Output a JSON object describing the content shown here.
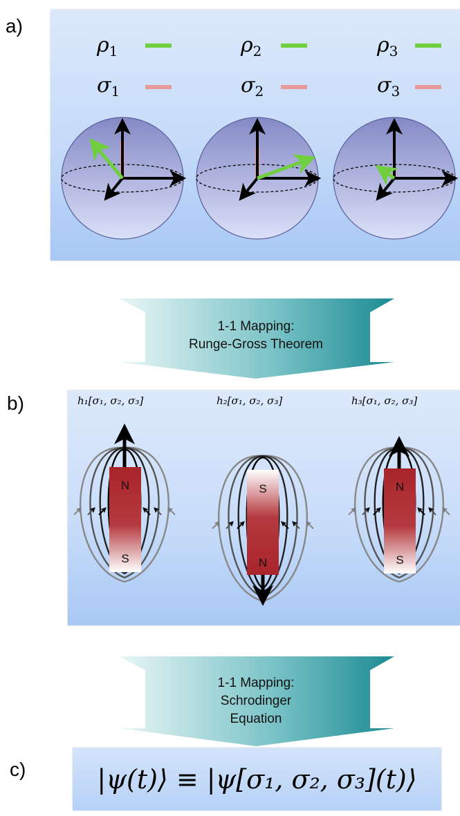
{
  "panels": {
    "a": {
      "label": "a)",
      "legend": [
        {
          "rho": "ρ",
          "rho_sub": "1",
          "sigma": "σ",
          "sigma_sub": "1"
        },
        {
          "rho": "ρ",
          "rho_sub": "2",
          "sigma": "σ",
          "sigma_sub": "2"
        },
        {
          "rho": "ρ",
          "rho_sub": "3",
          "sigma": "σ",
          "sigma_sub": "3"
        }
      ]
    },
    "b": {
      "label": "b)",
      "hamiltonians": [
        "h₁[σ₁, σ₂, σ₃]",
        "h₂[σ₁, σ₂, σ₃]",
        "h₃[σ₁, σ₂, σ₃]"
      ],
      "magnets": [
        {
          "top": "N",
          "bottom": "S"
        },
        {
          "top": "S",
          "bottom": "N"
        },
        {
          "top": "N",
          "bottom": "S"
        }
      ]
    },
    "c": {
      "label": "c)",
      "equation": "|ψ(t)⟩ ≡ |ψ[σ₁, σ₂, σ₃](t)⟩"
    }
  },
  "mappings": [
    {
      "line1": "1-1 Mapping:",
      "line2": "Runge-Gross Theorem",
      "line3": ""
    },
    {
      "line1": "1-1 Mapping:",
      "line2": "Schrodinger",
      "line3": "Equation"
    }
  ],
  "colors": {
    "rho": "#6fcf3f",
    "sigma": "#e89a9a",
    "magnet_red": "#a8242a",
    "arrow_teal_dark": "#1f8f95",
    "arrow_teal_light": "#dff3f3"
  }
}
